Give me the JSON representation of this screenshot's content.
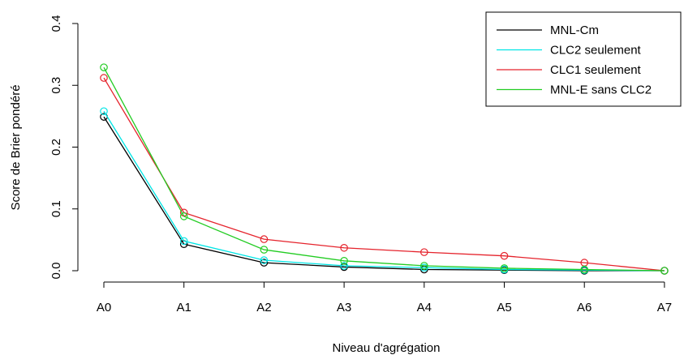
{
  "chart_data": {
    "type": "line",
    "xlabel": "Niveau d'agrégation",
    "ylabel": "Score de Brier pondéré",
    "categories": [
      "A0",
      "A1",
      "A2",
      "A3",
      "A4",
      "A5",
      "A6",
      "A7"
    ],
    "ylim": [
      0,
      0.4
    ],
    "yticks": [
      "0.0",
      "0.1",
      "0.2",
      "0.3",
      "0.4"
    ],
    "grid": false,
    "legend_position": "top-right",
    "series": [
      {
        "name": "MNL-Cm",
        "color": "#000000",
        "values": [
          0.249,
          0.043,
          0.013,
          0.006,
          0.002,
          0.001,
          0.0,
          0.0
        ]
      },
      {
        "name": "CLC2 seulement",
        "color": "#00e5e5",
        "values": [
          0.258,
          0.048,
          0.017,
          0.008,
          0.005,
          0.002,
          0.001,
          0.0
        ]
      },
      {
        "name": "CLC1 seulement",
        "color": "#e5232c",
        "values": [
          0.312,
          0.094,
          0.051,
          0.037,
          0.03,
          0.024,
          0.013,
          0.0
        ]
      },
      {
        "name": "MNL-E sans CLC2",
        "color": "#22cc22",
        "values": [
          0.329,
          0.088,
          0.034,
          0.016,
          0.008,
          0.004,
          0.002,
          0.0
        ]
      }
    ]
  }
}
